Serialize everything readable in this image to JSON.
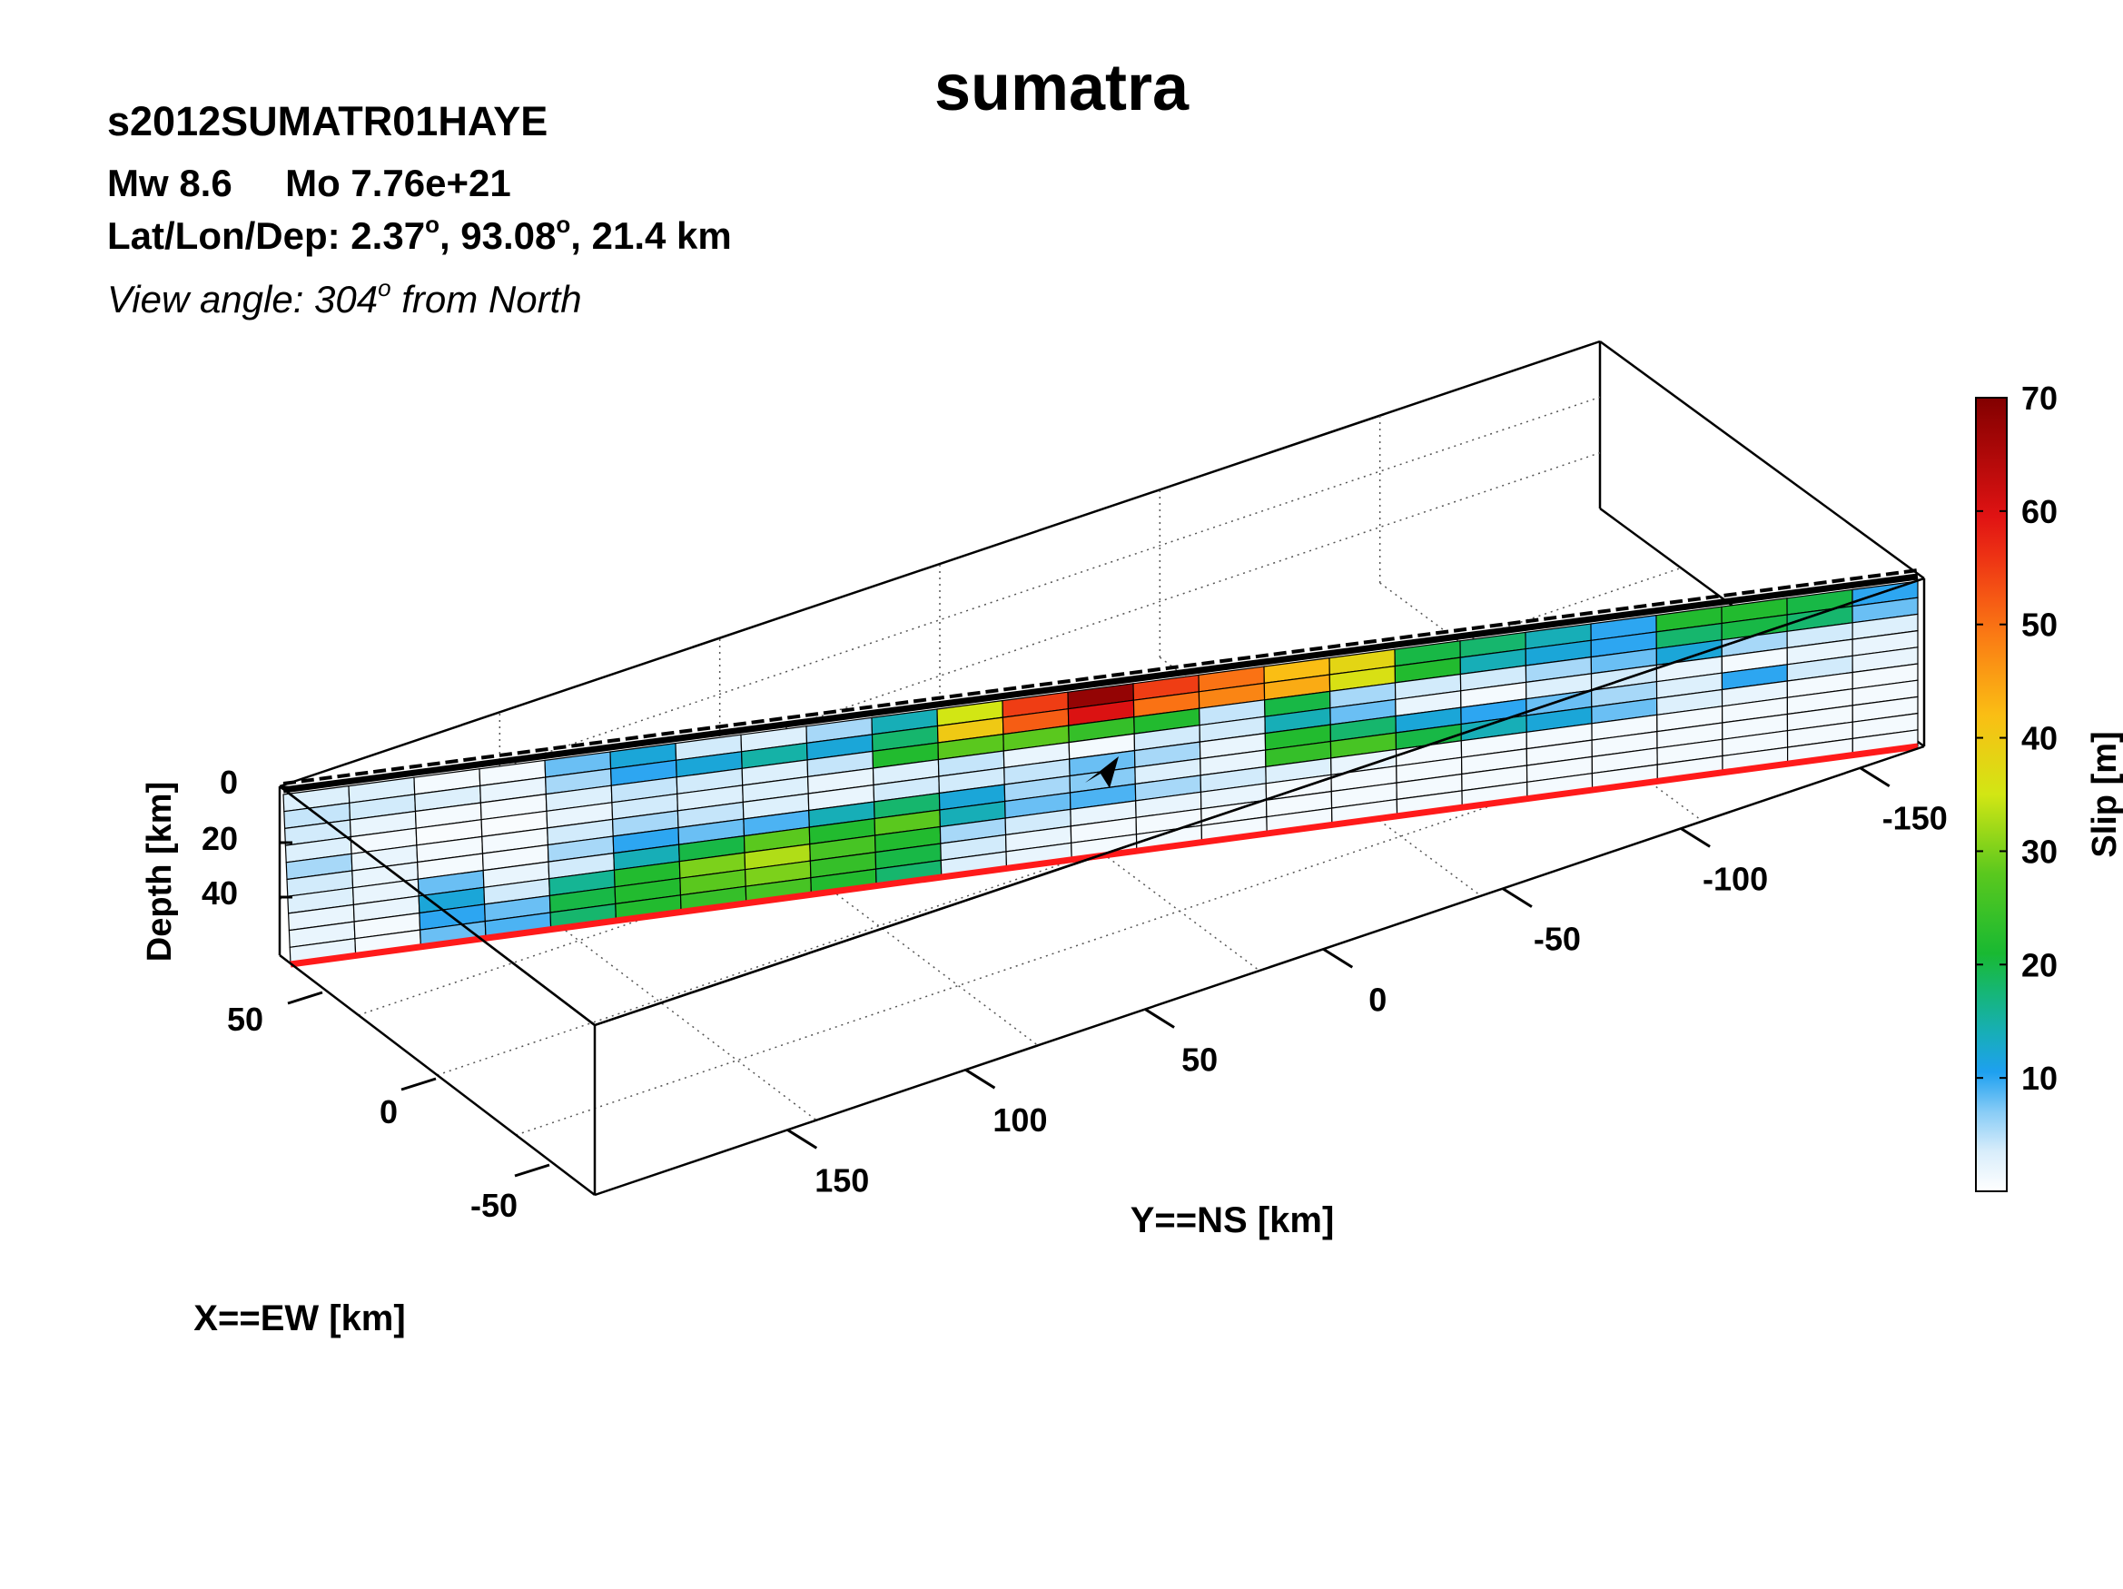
{
  "header": {
    "title": "sumatra",
    "event_id": "s2012SUMATR01HAYE",
    "mw_text": "Mw 8.6",
    "mo_text": "Mo 7.76e+21",
    "loc_prefix": "Lat/Lon/Dep: 2.37",
    "loc_mid": ", 93.08",
    "loc_suffix": ", 21.4 km",
    "degree_mark": "o",
    "view_prefix": "View angle: 304",
    "view_suffix": " from North"
  },
  "chart_data": {
    "type": "heatmap",
    "title": "sumatra",
    "xlabel": "X==EW [km]",
    "ylabel": "Y==NS [km]",
    "zlabel": "Depth [km]",
    "x_ticks": [
      "50",
      "0",
      "-50"
    ],
    "y_ticks": [
      "150",
      "100",
      "50",
      "0",
      "-50",
      "-100",
      "-150"
    ],
    "z_ticks": [
      "0",
      "20",
      "40"
    ],
    "colorbar": {
      "label": "Slip [m]",
      "range": [
        0,
        70
      ],
      "ticks": [
        "10",
        "20",
        "30",
        "40",
        "50",
        "60",
        "70"
      ]
    },
    "grid": true,
    "fault_grid": {
      "rows": 10,
      "cols": 25,
      "along_strike_axis": "Y==NS [km]",
      "down_dip_axis": "Depth [km]"
    },
    "slip": [
      [
        3,
        3,
        1,
        1,
        8,
        12,
        4,
        3,
        6,
        14,
        35,
        55,
        68,
        55,
        50,
        42,
        38,
        20,
        18,
        14,
        10,
        22,
        22,
        20,
        10
      ],
      [
        5,
        4,
        3,
        2,
        6,
        10,
        12,
        15,
        12,
        18,
        40,
        52,
        60,
        50,
        48,
        44,
        36,
        22,
        14,
        12,
        10,
        18,
        20,
        18,
        8
      ],
      [
        4,
        2,
        1,
        1,
        3,
        5,
        4,
        3,
        5,
        22,
        28,
        28,
        24,
        22,
        5,
        20,
        6,
        4,
        4,
        6,
        8,
        12,
        6,
        4,
        3
      ],
      [
        3,
        1,
        0.5,
        0.5,
        2,
        4,
        3,
        3,
        2,
        3,
        5,
        2,
        1,
        4,
        4,
        14,
        8,
        2,
        1,
        3,
        4,
        2,
        1,
        2,
        2
      ],
      [
        6,
        2,
        1,
        1,
        4,
        6,
        5,
        3,
        2,
        4,
        4,
        5,
        8,
        6,
        2,
        22,
        18,
        12,
        10,
        8,
        6,
        3,
        10,
        4,
        2
      ],
      [
        4,
        2,
        1,
        1,
        6,
        10,
        8,
        9,
        14,
        18,
        12,
        6,
        7,
        3,
        2,
        24,
        26,
        20,
        14,
        12,
        8,
        3,
        2,
        1,
        1
      ],
      [
        3,
        2,
        8,
        2,
        4,
        14,
        20,
        28,
        22,
        28,
        14,
        8,
        9,
        6,
        4,
        3,
        2,
        1,
        1,
        1,
        1,
        1,
        1,
        1,
        1
      ],
      [
        2,
        2,
        12,
        4,
        16,
        22,
        30,
        33,
        26,
        22,
        6,
        4,
        2,
        2,
        2,
        1,
        1,
        1,
        1,
        1,
        1,
        1,
        1,
        1,
        1
      ],
      [
        2,
        1,
        10,
        8,
        20,
        22,
        28,
        30,
        24,
        20,
        4,
        2,
        1,
        1,
        1,
        1,
        1,
        1,
        1,
        1,
        1,
        1,
        1,
        1,
        1
      ],
      [
        2,
        1,
        8,
        9,
        18,
        22,
        24,
        26,
        22,
        18,
        3,
        2,
        1,
        1,
        1,
        1,
        1,
        1,
        1,
        1,
        1,
        1,
        1,
        1,
        1
      ]
    ]
  }
}
